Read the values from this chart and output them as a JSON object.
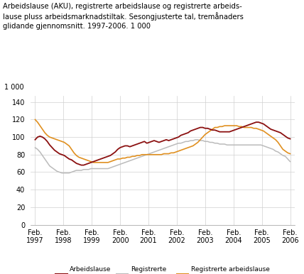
{
  "ylabel_top": "1 000",
  "title_lines": [
    "Arbeidslause (AKU), registrerte arbeidslause og registrerte arbeids-",
    "lause pluss arbeidsmarknadstiltak. Sesongjusterte tal, tremånaders",
    "glidande gjennomsnitt. 1997-2006. 1 000"
  ],
  "yticks": [
    0,
    20,
    40,
    60,
    80,
    100,
    120,
    140
  ],
  "ylim": [
    0,
    147
  ],
  "xtick_labels": [
    "Feb.\n1997",
    "Feb.\n1998",
    "Feb.\n1999",
    "Feb.\n2000",
    "Feb.\n2001",
    "Feb.\n2002",
    "Feb.\n2003",
    "Feb.\n2004",
    "Feb.\n2005",
    "Feb.\n2006"
  ],
  "line_colors": {
    "aku": "#8B1010",
    "reg": "#BBBBBB",
    "tiltak": "#E09020"
  },
  "legend": [
    {
      "label": "Arbeidslause\n(AKU)",
      "color": "#8B1010"
    },
    {
      "label": "Registrerte\narbeidslause",
      "color": "#BBBBBB"
    },
    {
      "label": "Registrerte arbeidslause\n+ tiltak",
      "color": "#E09020"
    }
  ],
  "aku": [
    97,
    100,
    101,
    100,
    98,
    95,
    91,
    88,
    85,
    83,
    81,
    80,
    79,
    77,
    75,
    74,
    72,
    70,
    69,
    68,
    68,
    69,
    70,
    71,
    72,
    73,
    74,
    75,
    76,
    77,
    78,
    79,
    81,
    83,
    86,
    88,
    89,
    90,
    90,
    89,
    90,
    91,
    92,
    93,
    94,
    95,
    93,
    94,
    95,
    96,
    95,
    94,
    95,
    96,
    97,
    96,
    97,
    98,
    99,
    100,
    102,
    103,
    104,
    105,
    107,
    108,
    109,
    110,
    111,
    111,
    110,
    110,
    109,
    108,
    108,
    107,
    106,
    106,
    106,
    106,
    106,
    107,
    108,
    109,
    110,
    111,
    112,
    113,
    114,
    115,
    116,
    117,
    117,
    116,
    115,
    113,
    111,
    109,
    108,
    107,
    106,
    105,
    103,
    101,
    99,
    98
  ],
  "reg": [
    88,
    86,
    83,
    79,
    75,
    71,
    67,
    65,
    63,
    61,
    60,
    59,
    59,
    59,
    59,
    60,
    61,
    62,
    62,
    62,
    63,
    63,
    63,
    64,
    64,
    64,
    64,
    64,
    64,
    64,
    64,
    65,
    66,
    67,
    68,
    69,
    70,
    71,
    72,
    73,
    74,
    75,
    76,
    77,
    78,
    79,
    80,
    81,
    82,
    83,
    84,
    85,
    86,
    87,
    88,
    89,
    90,
    91,
    92,
    93,
    93,
    94,
    95,
    95,
    96,
    96,
    97,
    97,
    96,
    96,
    95,
    95,
    94,
    94,
    93,
    93,
    92,
    92,
    92,
    91,
    91,
    91,
    91,
    91,
    91,
    91,
    91,
    91,
    91,
    91,
    91,
    91,
    91,
    91,
    90,
    89,
    88,
    87,
    86,
    84,
    83,
    81,
    79,
    78,
    75,
    72
  ],
  "tiltak": [
    120,
    117,
    113,
    109,
    105,
    102,
    100,
    99,
    98,
    97,
    96,
    95,
    94,
    92,
    90,
    86,
    82,
    79,
    77,
    76,
    75,
    74,
    73,
    72,
    71,
    71,
    71,
    71,
    71,
    71,
    71,
    72,
    73,
    74,
    75,
    75,
    76,
    76,
    77,
    77,
    78,
    78,
    79,
    79,
    80,
    80,
    80,
    80,
    80,
    80,
    80,
    80,
    80,
    81,
    81,
    81,
    82,
    82,
    83,
    84,
    85,
    86,
    87,
    88,
    89,
    90,
    92,
    94,
    97,
    100,
    103,
    105,
    107,
    109,
    111,
    111,
    112,
    112,
    113,
    113,
    113,
    113,
    113,
    113,
    112,
    112,
    111,
    111,
    111,
    111,
    110,
    110,
    109,
    108,
    107,
    105,
    103,
    101,
    99,
    97,
    94,
    90,
    86,
    84,
    82,
    81
  ]
}
